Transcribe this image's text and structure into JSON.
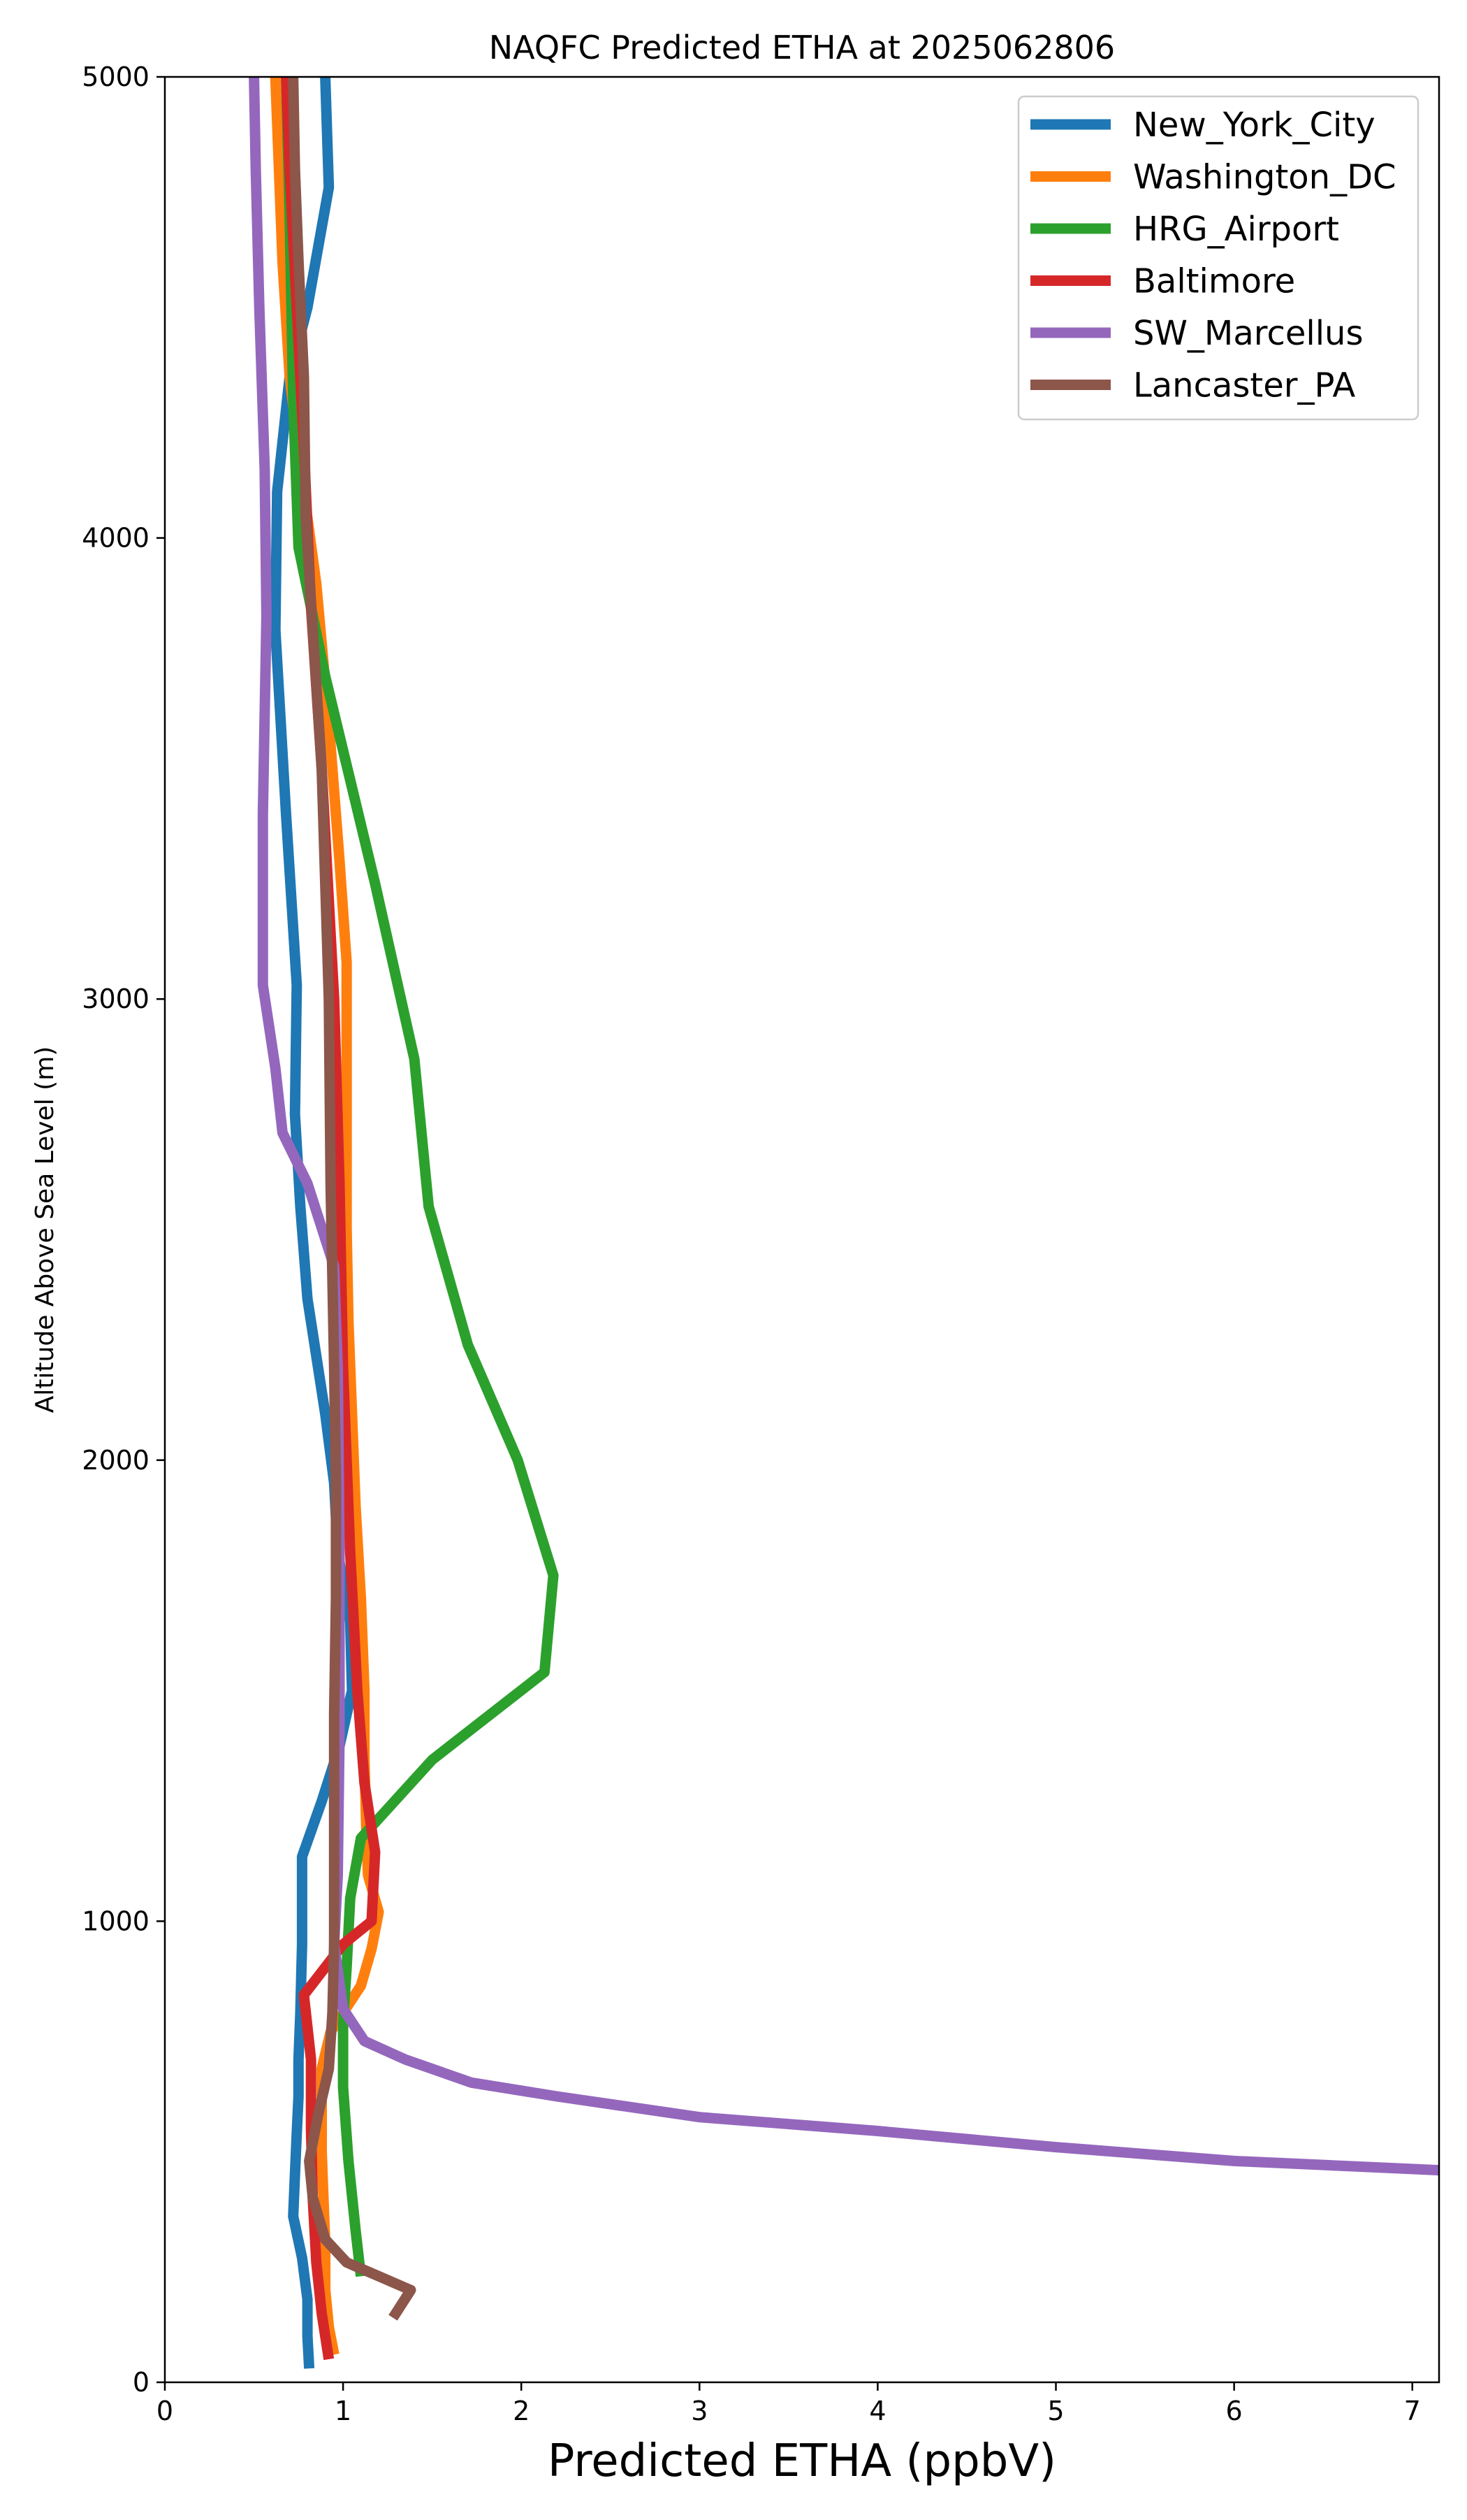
{
  "chart_data": {
    "type": "line",
    "title": "NAQFC Predicted ETHA at 2025062806",
    "xlabel": "Predicted ETHA (ppbV)",
    "ylabel": "Altitude Above Sea Level (m)",
    "xlim": [
      0,
      7.15
    ],
    "ylim": [
      0,
      5000
    ],
    "xticks": [
      0,
      1,
      2,
      3,
      4,
      5,
      6,
      7
    ],
    "yticks": [
      0,
      1000,
      2000,
      3000,
      4000,
      5000
    ],
    "grid": false,
    "legend_position": "top-right",
    "series": [
      {
        "name": "New_York_City",
        "color": "#1f77b4",
        "points": [
          [
            0.81,
            30
          ],
          [
            0.8,
            100
          ],
          [
            0.8,
            180
          ],
          [
            0.77,
            270
          ],
          [
            0.72,
            360
          ],
          [
            0.73,
            450
          ],
          [
            0.74,
            540
          ],
          [
            0.75,
            620
          ],
          [
            0.75,
            700
          ],
          [
            0.76,
            800
          ],
          [
            0.77,
            950
          ],
          [
            0.77,
            1050
          ],
          [
            0.77,
            1140
          ],
          [
            0.88,
            1260
          ],
          [
            0.98,
            1380
          ],
          [
            1.05,
            1500
          ],
          [
            1.04,
            1650
          ],
          [
            0.97,
            1800
          ],
          [
            0.95,
            1950
          ],
          [
            0.9,
            2100
          ],
          [
            0.8,
            2350
          ],
          [
            0.76,
            2550
          ],
          [
            0.73,
            2750
          ],
          [
            0.74,
            3030
          ],
          [
            0.68,
            3400
          ],
          [
            0.62,
            3800
          ],
          [
            0.63,
            4100
          ],
          [
            0.7,
            4350
          ],
          [
            0.8,
            4500
          ],
          [
            0.92,
            4760
          ],
          [
            0.9,
            5000
          ]
        ]
      },
      {
        "name": "Washington_DC",
        "color": "#ff7f0e",
        "points": [
          [
            0.95,
            60
          ],
          [
            0.92,
            120
          ],
          [
            0.9,
            200
          ],
          [
            0.9,
            300
          ],
          [
            0.89,
            400
          ],
          [
            0.88,
            500
          ],
          [
            0.88,
            600
          ],
          [
            0.88,
            680
          ],
          [
            0.93,
            760
          ],
          [
            1.1,
            860
          ],
          [
            1.16,
            940
          ],
          [
            1.2,
            1020
          ],
          [
            1.14,
            1100
          ],
          [
            1.13,
            1200
          ],
          [
            1.12,
            1350
          ],
          [
            1.12,
            1500
          ],
          [
            1.1,
            1700
          ],
          [
            1.07,
            1900
          ],
          [
            1.05,
            2100
          ],
          [
            1.03,
            2300
          ],
          [
            1.02,
            2500
          ],
          [
            1.02,
            2700
          ],
          [
            1.02,
            2900
          ],
          [
            1.02,
            3080
          ],
          [
            0.98,
            3300
          ],
          [
            0.92,
            3600
          ],
          [
            0.85,
            3900
          ],
          [
            0.78,
            4100
          ],
          [
            0.7,
            4350
          ],
          [
            0.66,
            4600
          ],
          [
            0.64,
            4800
          ],
          [
            0.62,
            5000
          ]
        ]
      },
      {
        "name": "HRG_Airport",
        "color": "#2ca02c",
        "points": [
          [
            1.1,
            230
          ],
          [
            1.07,
            330
          ],
          [
            1.03,
            480
          ],
          [
            1.0,
            640
          ],
          [
            1.0,
            780
          ],
          [
            1.02,
            900
          ],
          [
            1.04,
            1050
          ],
          [
            1.1,
            1180
          ],
          [
            1.5,
            1350
          ],
          [
            2.13,
            1540
          ],
          [
            2.18,
            1750
          ],
          [
            1.98,
            2000
          ],
          [
            1.7,
            2250
          ],
          [
            1.48,
            2550
          ],
          [
            1.4,
            2870
          ],
          [
            1.18,
            3250
          ],
          [
            0.9,
            3700
          ],
          [
            0.75,
            3980
          ],
          [
            0.72,
            4300
          ],
          [
            0.7,
            4700
          ],
          [
            0.68,
            5000
          ]
        ]
      },
      {
        "name": "Baltimore",
        "color": "#d62728",
        "points": [
          [
            0.92,
            50
          ],
          [
            0.88,
            150
          ],
          [
            0.85,
            260
          ],
          [
            0.83,
            400
          ],
          [
            0.82,
            550
          ],
          [
            0.82,
            700
          ],
          [
            0.78,
            840
          ],
          [
            1.0,
            950
          ],
          [
            1.16,
            1000
          ],
          [
            1.18,
            1150
          ],
          [
            1.12,
            1300
          ],
          [
            1.08,
            1500
          ],
          [
            1.04,
            1800
          ],
          [
            1.0,
            2200
          ],
          [
            0.98,
            2600
          ],
          [
            0.95,
            3000
          ],
          [
            0.88,
            3500
          ],
          [
            0.82,
            3850
          ],
          [
            0.78,
            4200
          ],
          [
            0.74,
            4500
          ],
          [
            0.7,
            4800
          ],
          [
            0.68,
            5000
          ]
        ]
      },
      {
        "name": "SW_Marcellus",
        "color": "#9467bd",
        "points": [
          [
            7.15,
            460
          ],
          [
            6.0,
            480
          ],
          [
            5.0,
            510
          ],
          [
            4.0,
            545
          ],
          [
            3.0,
            575
          ],
          [
            2.2,
            620
          ],
          [
            1.72,
            650
          ],
          [
            1.35,
            700
          ],
          [
            1.12,
            740
          ],
          [
            1.0,
            810
          ],
          [
            0.95,
            950
          ],
          [
            0.97,
            1100
          ],
          [
            0.98,
            1400
          ],
          [
            0.98,
            1800
          ],
          [
            0.97,
            2200
          ],
          [
            0.95,
            2420
          ],
          [
            0.8,
            2600
          ],
          [
            0.66,
            2710
          ],
          [
            0.62,
            2850
          ],
          [
            0.55,
            3030
          ],
          [
            0.55,
            3400
          ],
          [
            0.57,
            3830
          ],
          [
            0.56,
            4150
          ],
          [
            0.53,
            4500
          ],
          [
            0.51,
            4800
          ],
          [
            0.5,
            5000
          ]
        ]
      },
      {
        "name": "Lancaster_PA",
        "color": "#8c564b",
        "points": [
          [
            1.28,
            140
          ],
          [
            1.38,
            200
          ],
          [
            1.2,
            230
          ],
          [
            1.02,
            260
          ],
          [
            0.9,
            310
          ],
          [
            0.83,
            400
          ],
          [
            0.81,
            480
          ],
          [
            0.86,
            580
          ],
          [
            0.92,
            680
          ],
          [
            0.94,
            800
          ],
          [
            0.95,
            950
          ],
          [
            0.95,
            1100
          ],
          [
            0.95,
            1300
          ],
          [
            0.95,
            1450
          ],
          [
            0.96,
            1700
          ],
          [
            0.96,
            1950
          ],
          [
            0.95,
            2200
          ],
          [
            0.93,
            2600
          ],
          [
            0.92,
            3000
          ],
          [
            0.88,
            3500
          ],
          [
            0.83,
            3800
          ],
          [
            0.79,
            4050
          ],
          [
            0.78,
            4350
          ],
          [
            0.75,
            4600
          ],
          [
            0.73,
            4800
          ],
          [
            0.72,
            5000
          ]
        ]
      }
    ]
  }
}
